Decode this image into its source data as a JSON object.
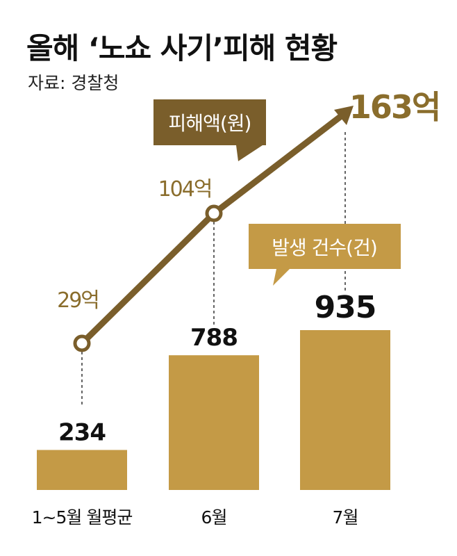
{
  "title": "올해 ‘노쇼 사기’피해 현황",
  "source": "자료: 경찰청",
  "colors": {
    "bar": "#c49a46",
    "line": "#7a5e2b",
    "callout_dark": "#7a5e2b",
    "callout_light": "#c49a46",
    "amount_text": "#8a6d2c"
  },
  "chart_data": {
    "type": "bar",
    "categories": [
      "1~5월 월평균",
      "6월",
      "7월"
    ],
    "series": [
      {
        "name": "발생 건수(건)",
        "type": "bar",
        "values": [
          234,
          788,
          935
        ],
        "labels": [
          "234",
          "788",
          "935"
        ]
      },
      {
        "name": "피해액(원)",
        "type": "line",
        "values": [
          29,
          104,
          163
        ],
        "labels": [
          "29억",
          "104억",
          "163억"
        ]
      }
    ]
  }
}
